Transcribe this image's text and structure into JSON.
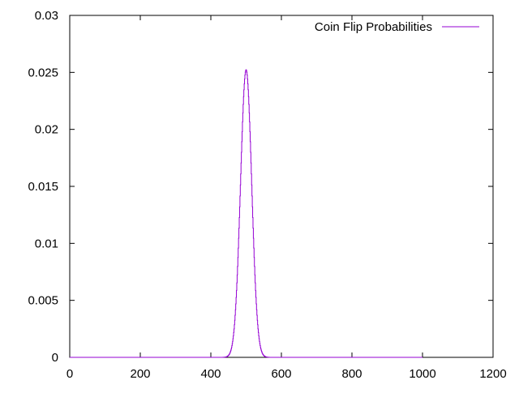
{
  "chart_data": {
    "type": "line",
    "title": "",
    "xlabel": "",
    "ylabel": "",
    "xlim": [
      0,
      1200
    ],
    "ylim": [
      0,
      0.03
    ],
    "x_ticks": [
      0,
      200,
      400,
      600,
      800,
      1000,
      1200
    ],
    "y_ticks": [
      0,
      0.005,
      0.01,
      0.015,
      0.02,
      0.025,
      0.03
    ],
    "x_tick_labels": [
      "0",
      "200",
      "400",
      "600",
      "800",
      "1000",
      "1200"
    ],
    "y_tick_labels": [
      "0",
      "0.005",
      "0.01",
      "0.015",
      "0.02",
      "0.025",
      "0.03"
    ],
    "grid": false,
    "legend_position": "top-right",
    "series": [
      {
        "name": "Coin Flip Probabilities",
        "color": "#9400d3",
        "style": "steps",
        "distribution": "binomial",
        "n": 1000,
        "p": 0.5,
        "peak_x": 500,
        "peak_y": 0.0252
      }
    ]
  }
}
